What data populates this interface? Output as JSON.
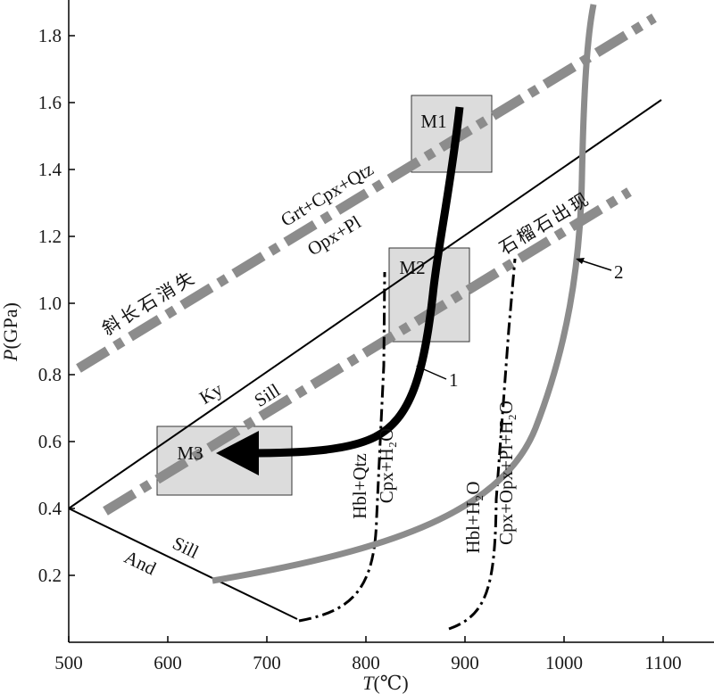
{
  "axes": {
    "x_title_italic": "T",
    "x_title_rest": "(℃)",
    "y_title_italic": "P",
    "y_title_rest": "(GPa)",
    "x_ticks": [
      "500",
      "600",
      "700",
      "800",
      "900",
      "1000",
      "1100"
    ],
    "y_ticks": [
      "0.2",
      "0.4",
      "0.6",
      "0.8",
      "1.0",
      "1.2",
      "1.4",
      "1.6",
      "1.8"
    ]
  },
  "labels": {
    "plag_out": "斜长石消失",
    "garnet_in": "石榴石出现",
    "reaction_top": "Grt+Cpx+Qtz",
    "reaction_bottom": "Opx+Pl",
    "ky": "Ky",
    "sill_upper": "Sill",
    "sill_lower": "Sill",
    "and": "And",
    "hbl_qtz": "Hbl+Qtz",
    "cpx_h2o": "Cpx+H₂O",
    "hbl_h2o": "Hbl+H₂O",
    "cpx_opx_pl": "Cpx+Opx+Pl+H₂O",
    "pointer_1": "1",
    "pointer_2": "2"
  },
  "stages": {
    "m1": "M1",
    "m2": "M2",
    "m3": "M3"
  },
  "colors": {
    "gray_line": "#8c8c8c",
    "box_fill": "#dcdcdc",
    "black": "#000000"
  }
}
